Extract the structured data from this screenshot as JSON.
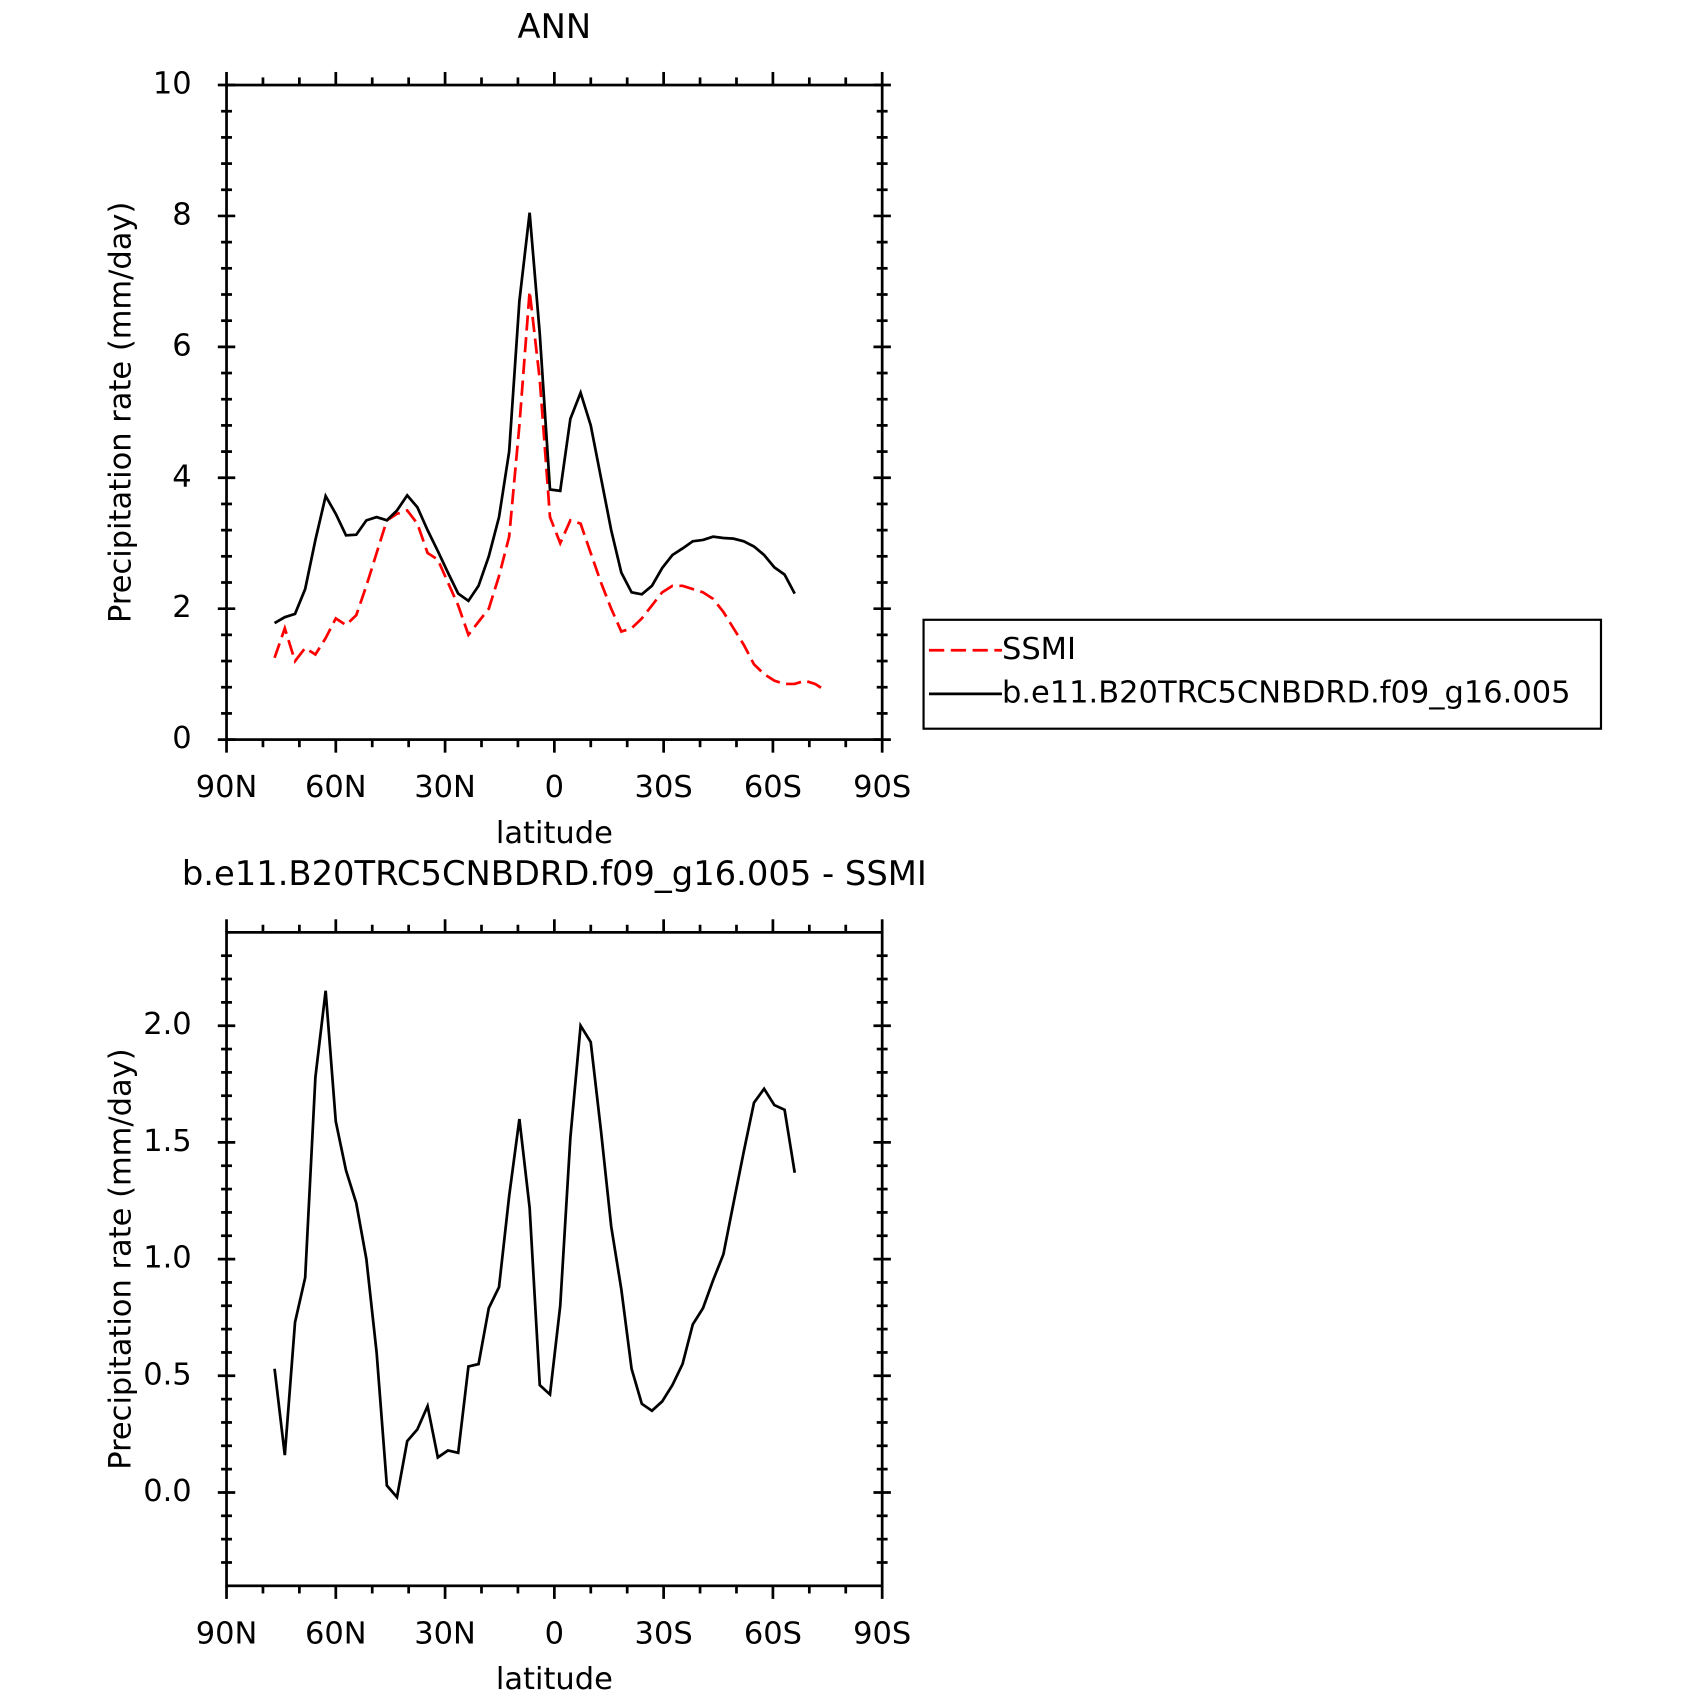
{
  "chart_data": [
    {
      "type": "line",
      "title": "ANN",
      "xlabel": "latitude",
      "ylabel": "Precipitation rate (mm/day)",
      "x": [
        76.8,
        74.0,
        71.2,
        68.4,
        65.6,
        62.8,
        60.0,
        57.2,
        54.4,
        51.6,
        48.8,
        46.0,
        43.2,
        40.4,
        37.6,
        34.8,
        32.0,
        29.2,
        26.4,
        23.6,
        20.8,
        18.0,
        15.2,
        12.4,
        9.6,
        6.8,
        4.0,
        1.2,
        -1.6,
        -4.4,
        -7.2,
        -10.0,
        -12.8,
        -15.6,
        -18.4,
        -21.2,
        -24.0,
        -26.8,
        -29.6,
        -32.4,
        -35.2,
        -38.0,
        -40.8,
        -43.6,
        -46.4,
        -49.2,
        -52.0,
        -54.8,
        -57.6,
        -60.4,
        -63.2,
        -66.0,
        -68.8,
        -71.6,
        -74.4
      ],
      "series": [
        {
          "name": "SSMI",
          "color": "#ff0000",
          "dashed": true,
          "values": [
            1.25,
            1.7,
            1.2,
            1.4,
            1.3,
            1.55,
            1.85,
            1.75,
            1.9,
            2.35,
            2.85,
            3.35,
            3.45,
            3.5,
            3.3,
            2.85,
            2.75,
            2.4,
            2.05,
            1.6,
            1.8,
            2.0,
            2.5,
            3.1,
            4.8,
            6.85,
            5.5,
            3.4,
            3.0,
            3.35,
            3.3,
            2.85,
            2.4,
            2.0,
            1.65,
            1.7,
            1.85,
            2.05,
            2.25,
            2.35,
            2.35,
            2.3,
            2.25,
            2.15,
            1.95,
            1.7,
            1.45,
            1.15,
            1.0,
            0.9,
            0.85,
            0.85,
            0.9,
            0.85,
            0.75
          ]
        },
        {
          "name": "b.e11.B20TRC5CNBDRD.f09_g16.005",
          "color": "#000000",
          "dashed": false,
          "values": [
            1.78,
            1.87,
            1.92,
            2.3,
            3.05,
            3.72,
            3.45,
            3.12,
            3.13,
            3.35,
            3.4,
            3.35,
            3.5,
            3.73,
            3.55,
            3.2,
            2.88,
            2.55,
            2.23,
            2.12,
            2.35,
            2.8,
            3.4,
            4.4,
            6.7,
            8.05,
            6.2,
            3.82,
            3.8,
            4.9,
            5.3,
            4.8,
            4.0,
            3.2,
            2.55,
            2.25,
            2.22,
            2.35,
            2.62,
            2.82,
            2.92,
            3.03,
            3.05,
            3.1,
            3.08,
            3.07,
            3.03,
            2.95,
            2.82,
            2.63,
            2.52,
            2.23,
            null,
            null,
            null
          ]
        }
      ],
      "xlim": [
        90,
        -90
      ],
      "xticks": [
        {
          "value": 90,
          "label": "90N"
        },
        {
          "value": 60,
          "label": "60N"
        },
        {
          "value": 30,
          "label": "30N"
        },
        0,
        {
          "value": -30,
          "label": "30S"
        },
        {
          "value": -60,
          "label": "60S"
        },
        {
          "value": -90,
          "label": "90S"
        }
      ],
      "xminorticks": [
        80,
        70,
        50,
        40,
        20,
        10,
        -10,
        -20,
        -40,
        -50,
        -70,
        -80
      ],
      "ylim": [
        0,
        10
      ],
      "yticks": [
        0,
        2,
        4,
        6,
        8,
        10
      ],
      "yminorticks": [
        0.4,
        0.8,
        1.2,
        1.6,
        2.4,
        2.8,
        3.2,
        3.6,
        4.4,
        4.8,
        5.2,
        5.6,
        6.4,
        6.8,
        7.2,
        7.6,
        8.4,
        8.8,
        9.2,
        9.6
      ],
      "legend": "right"
    },
    {
      "type": "line",
      "title": "b.e11.B20TRC5CNBDRD.f09_g16.005 - SSMI",
      "xlabel": "latitude",
      "ylabel": "Precipitation rate (mm/day)",
      "x": [
        76.8,
        74.0,
        71.2,
        68.4,
        65.6,
        62.8,
        60.0,
        57.2,
        54.4,
        51.6,
        48.8,
        46.0,
        43.2,
        40.4,
        37.6,
        34.8,
        32.0,
        29.2,
        26.4,
        23.6,
        20.8,
        18.0,
        15.2,
        12.4,
        9.6,
        6.8,
        4.0,
        1.2,
        -1.6,
        -4.4,
        -7.2,
        -10.0,
        -12.8,
        -15.6,
        -18.4,
        -21.2,
        -24.0,
        -26.8,
        -29.6,
        -32.4,
        -35.2,
        -38.0,
        -40.8,
        -43.6,
        -46.4,
        -49.2,
        -52.0,
        -54.8,
        -57.6,
        -60.4,
        -63.2,
        -66.0,
        -68.8,
        -71.6,
        -74.4
      ],
      "values": [
        0.53,
        0.16,
        0.73,
        0.92,
        1.78,
        2.15,
        1.59,
        1.38,
        1.24,
        1.0,
        0.6,
        0.03,
        -0.02,
        0.22,
        0.27,
        0.37,
        0.15,
        0.18,
        0.17,
        0.54,
        0.55,
        0.79,
        0.88,
        1.27,
        1.6,
        1.22,
        0.46,
        0.42,
        0.8,
        1.52,
        2.0,
        1.93,
        1.55,
        1.14,
        0.87,
        0.53,
        0.38,
        0.35,
        0.39,
        0.46,
        0.55,
        0.72,
        0.79,
        0.91,
        1.02,
        1.24,
        1.46,
        1.67,
        1.73,
        1.66,
        1.64,
        1.37,
        null,
        null,
        null
      ],
      "color": "#000000",
      "xlim": [
        90,
        -90
      ],
      "xticks": [
        {
          "value": 90,
          "label": "90N"
        },
        {
          "value": 60,
          "label": "60N"
        },
        {
          "value": 30,
          "label": "30N"
        },
        0,
        {
          "value": -30,
          "label": "30S"
        },
        {
          "value": -60,
          "label": "60S"
        },
        {
          "value": -90,
          "label": "90S"
        }
      ],
      "xminorticks": [
        80,
        70,
        50,
        40,
        20,
        10,
        -10,
        -20,
        -40,
        -50,
        -70,
        -80
      ],
      "ylim": [
        -0.4,
        2.4
      ],
      "yticks": [
        {
          "value": 0,
          "label": "0.0"
        },
        {
          "value": 0.5,
          "label": "0.5"
        },
        {
          "value": 1,
          "label": "1.0"
        },
        {
          "value": 1.5,
          "label": "1.5"
        },
        {
          "value": 2,
          "label": "2.0"
        }
      ],
      "yminorticks": [
        -0.3,
        -0.2,
        -0.1,
        0.1,
        0.2,
        0.3,
        0.4,
        0.6,
        0.7,
        0.8,
        0.9,
        1.1,
        1.2,
        1.3,
        1.4,
        1.6,
        1.7,
        1.8,
        1.9,
        2.1,
        2.2,
        2.3
      ]
    }
  ]
}
